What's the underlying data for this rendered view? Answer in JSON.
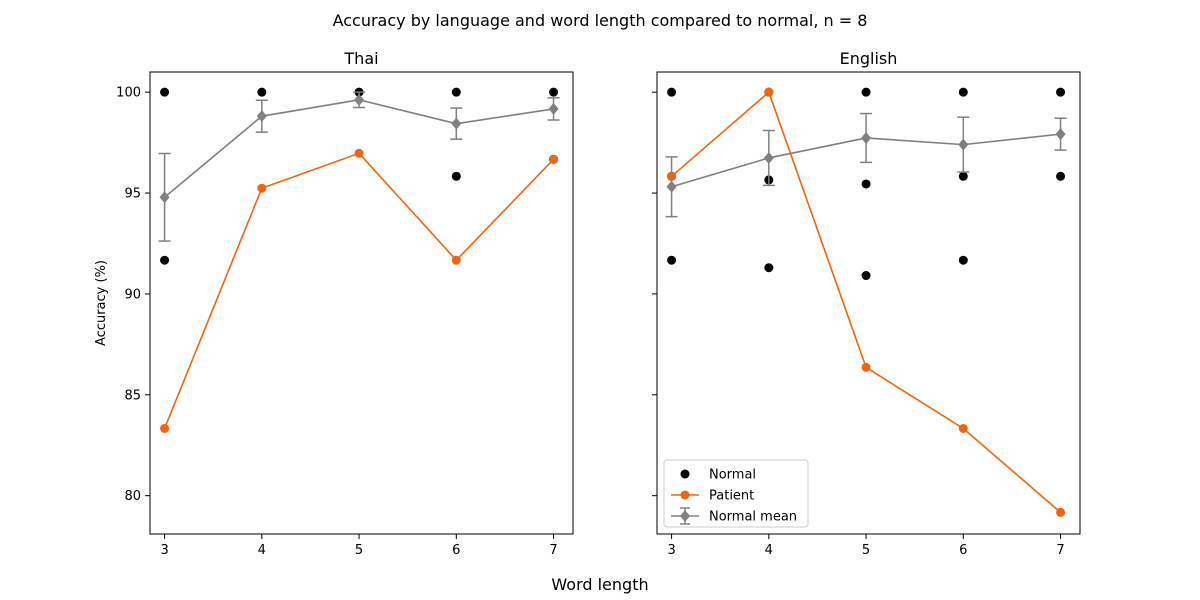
{
  "figure": {
    "title": "Accuracy by language and word length compared to normal, n = 8",
    "xlabel": "Word length",
    "ylabel": "Accuracy (%)"
  },
  "chart_data": [
    {
      "type": "scatter+line",
      "title": "Thai",
      "x": [
        3,
        4,
        5,
        6,
        7
      ],
      "xlim": [
        2.85,
        7.2
      ],
      "ylim": [
        78.1,
        101.0
      ],
      "yticks": [
        80,
        85,
        90,
        95,
        100
      ],
      "grid": false,
      "normal_points": {
        "3": [
          100,
          91.67
        ],
        "4": [
          100
        ],
        "5": [
          100
        ],
        "6": [
          100,
          95.83
        ],
        "7": [
          100,
          96.67
        ]
      },
      "series": [
        {
          "name": "Patient",
          "color": "#f0650f",
          "values": [
            83.33,
            95.24,
            96.97,
            91.67,
            96.67
          ]
        },
        {
          "name": "Normal mean",
          "color": "#808080",
          "values": [
            94.79,
            98.81,
            99.62,
            98.44,
            99.17
          ],
          "error": [
            2.17,
            0.79,
            0.38,
            0.77,
            0.55
          ]
        }
      ]
    },
    {
      "type": "scatter+line",
      "title": "English",
      "x": [
        3,
        4,
        5,
        6,
        7
      ],
      "xlim": [
        2.85,
        7.2
      ],
      "ylim": [
        78.1,
        101.0
      ],
      "yticks": [
        80,
        85,
        90,
        95,
        100
      ],
      "grid": false,
      "normal_points": {
        "3": [
          100,
          95.83,
          91.67
        ],
        "4": [
          100,
          95.65,
          91.3
        ],
        "5": [
          100,
          95.45,
          90.91
        ],
        "6": [
          100,
          95.83,
          91.67
        ],
        "7": [
          100,
          95.83
        ]
      },
      "series": [
        {
          "name": "Patient",
          "color": "#f0650f",
          "values": [
            95.83,
            100,
            86.36,
            83.33,
            79.17
          ]
        },
        {
          "name": "Normal mean",
          "color": "#808080",
          "values": [
            95.31,
            96.74,
            97.73,
            97.4,
            97.92
          ],
          "error": [
            1.48,
            1.36,
            1.21,
            1.36,
            0.79
          ]
        }
      ],
      "legend": {
        "placement": "lower-left",
        "entries": [
          "Normal",
          "Patient",
          "Normal mean"
        ]
      }
    }
  ]
}
